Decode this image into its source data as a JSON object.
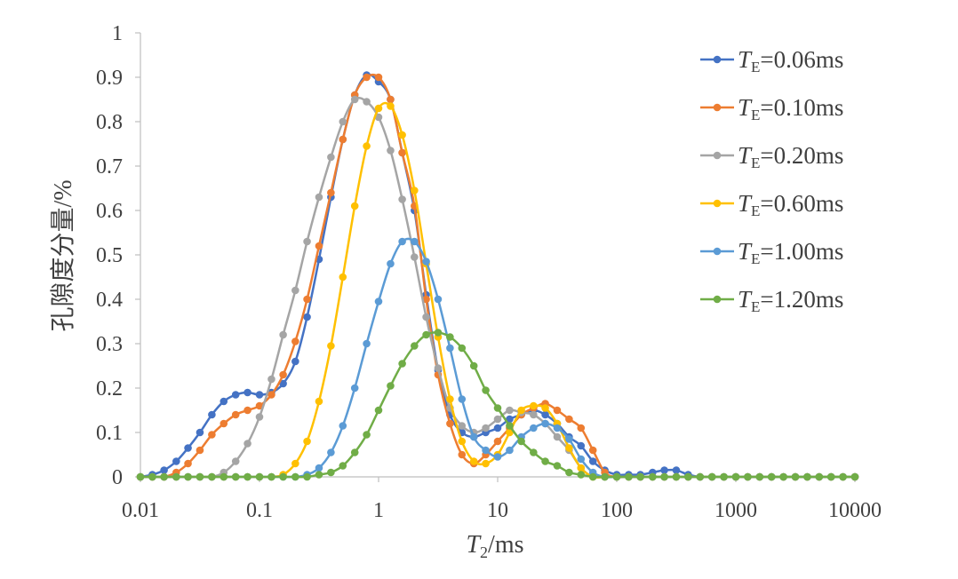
{
  "chart_data": {
    "type": "line",
    "x_scale": "log",
    "xlim": [
      0.01,
      10000
    ],
    "ylim": [
      0,
      1
    ],
    "x_ticks": [
      0.01,
      0.1,
      1,
      10,
      100,
      1000,
      10000
    ],
    "x_tick_labels": [
      "0.01",
      "0.1",
      "1",
      "10",
      "100",
      "1000",
      "10000"
    ],
    "y_ticks": [
      0,
      0.1,
      0.2,
      0.3,
      0.4,
      0.5,
      0.6,
      0.7,
      0.8,
      0.9,
      1
    ],
    "y_tick_labels": [
      "0",
      "0.1",
      "0.2",
      "0.3",
      "0.4",
      "0.5",
      "0.6",
      "0.7",
      "0.8",
      "0.9",
      "1"
    ],
    "xlabel": {
      "main": "T",
      "sub": "2",
      "rest": "/ms"
    },
    "ylabel": "孔隙度分量/%",
    "grid": false,
    "legend_position": "right",
    "x": [
      0.01,
      0.0126,
      0.0158,
      0.02,
      0.0251,
      0.0316,
      0.0398,
      0.0501,
      0.0631,
      0.0794,
      0.1,
      0.126,
      0.158,
      0.2,
      0.251,
      0.316,
      0.398,
      0.501,
      0.631,
      0.794,
      1,
      1.26,
      1.58,
      2,
      2.51,
      3.16,
      3.98,
      5.01,
      6.31,
      7.94,
      10,
      12.6,
      15.8,
      20,
      25.1,
      31.6,
      39.8,
      50.1,
      63.1,
      79.4,
      100,
      126,
      158,
      200,
      251,
      316,
      398,
      501,
      631,
      794,
      1000,
      1259,
      1585,
      1995,
      2512,
      3162,
      3981,
      5012,
      6310,
      7943,
      10000
    ],
    "series": [
      {
        "name": "0.06ms",
        "color": "#4472C4",
        "values": [
          0,
          0.005,
          0.015,
          0.035,
          0.065,
          0.1,
          0.14,
          0.17,
          0.185,
          0.19,
          0.185,
          0.19,
          0.21,
          0.26,
          0.36,
          0.49,
          0.63,
          0.76,
          0.86,
          0.905,
          0.89,
          0.85,
          0.73,
          0.6,
          0.41,
          0.24,
          0.14,
          0.1,
          0.09,
          0.1,
          0.11,
          0.13,
          0.14,
          0.15,
          0.14,
          0.12,
          0.09,
          0.07,
          0.035,
          0.015,
          0.005,
          0.005,
          0.005,
          0.01,
          0.015,
          0.015,
          0.005,
          0,
          0,
          0,
          0,
          0,
          0,
          0,
          0,
          0,
          0,
          0,
          0,
          0,
          0
        ]
      },
      {
        "name": "0.10ms",
        "color": "#ED7D31",
        "values": [
          0,
          0,
          0,
          0.01,
          0.03,
          0.06,
          0.095,
          0.12,
          0.14,
          0.15,
          0.16,
          0.185,
          0.23,
          0.305,
          0.4,
          0.52,
          0.64,
          0.76,
          0.86,
          0.9,
          0.9,
          0.85,
          0.73,
          0.61,
          0.4,
          0.23,
          0.12,
          0.05,
          0.03,
          0.05,
          0.08,
          0.11,
          0.14,
          0.155,
          0.165,
          0.15,
          0.13,
          0.11,
          0.06,
          0.01,
          0,
          0,
          0,
          0,
          0,
          0,
          0,
          0,
          0,
          0,
          0,
          0,
          0,
          0,
          0,
          0,
          0,
          0,
          0,
          0,
          0
        ]
      },
      {
        "name": "0.20ms",
        "color": "#A5A5A5",
        "values": [
          0,
          0,
          0,
          0,
          0,
          0,
          0,
          0.01,
          0.035,
          0.075,
          0.135,
          0.22,
          0.32,
          0.42,
          0.53,
          0.63,
          0.72,
          0.8,
          0.85,
          0.845,
          0.81,
          0.735,
          0.625,
          0.495,
          0.36,
          0.245,
          0.155,
          0.115,
          0.1,
          0.11,
          0.13,
          0.15,
          0.145,
          0.14,
          0.12,
          0.09,
          0.06,
          0.02,
          0,
          0,
          0,
          0,
          0,
          0,
          0,
          0,
          0,
          0,
          0,
          0,
          0,
          0,
          0,
          0,
          0,
          0,
          0,
          0,
          0,
          0,
          0
        ]
      },
      {
        "name": "0.60ms",
        "color": "#FFC000",
        "values": [
          0,
          0,
          0,
          0,
          0,
          0,
          0,
          0,
          0,
          0,
          0,
          0,
          0.005,
          0.03,
          0.08,
          0.17,
          0.295,
          0.45,
          0.61,
          0.745,
          0.83,
          0.835,
          0.77,
          0.645,
          0.48,
          0.315,
          0.175,
          0.08,
          0.035,
          0.03,
          0.05,
          0.1,
          0.15,
          0.16,
          0.155,
          0.12,
          0.065,
          0.02,
          0,
          0,
          0,
          0,
          0,
          0,
          0,
          0,
          0,
          0,
          0,
          0,
          0,
          0,
          0,
          0,
          0,
          0,
          0,
          0,
          0,
          0,
          0
        ]
      },
      {
        "name": "1.00ms",
        "color": "#5B9BD5",
        "values": [
          0,
          0,
          0,
          0,
          0,
          0,
          0,
          0,
          0,
          0,
          0,
          0,
          0,
          0,
          0.005,
          0.02,
          0.055,
          0.115,
          0.2,
          0.3,
          0.395,
          0.48,
          0.53,
          0.53,
          0.485,
          0.4,
          0.29,
          0.175,
          0.09,
          0.06,
          0.045,
          0.06,
          0.09,
          0.11,
          0.12,
          0.11,
          0.085,
          0.04,
          0.01,
          0,
          0,
          0,
          0,
          0,
          0,
          0,
          0,
          0,
          0,
          0,
          0,
          0,
          0,
          0,
          0,
          0,
          0,
          0,
          0,
          0,
          0
        ]
      },
      {
        "name": "1.20ms",
        "color": "#70AD47",
        "values": [
          0,
          0,
          0,
          0,
          0,
          0,
          0,
          0,
          0,
          0,
          0,
          0,
          0,
          0,
          0,
          0.005,
          0.01,
          0.025,
          0.055,
          0.095,
          0.15,
          0.205,
          0.255,
          0.295,
          0.32,
          0.325,
          0.315,
          0.29,
          0.25,
          0.195,
          0.155,
          0.115,
          0.08,
          0.055,
          0.035,
          0.025,
          0.01,
          0.005,
          0,
          0,
          0,
          0,
          0,
          0,
          0,
          0,
          0,
          0,
          0,
          0,
          0,
          0,
          0,
          0,
          0,
          0,
          0,
          0,
          0,
          0,
          0
        ]
      }
    ],
    "legend_prefix_main": "T",
    "legend_prefix_sub": "E",
    "legend_eq": "="
  }
}
